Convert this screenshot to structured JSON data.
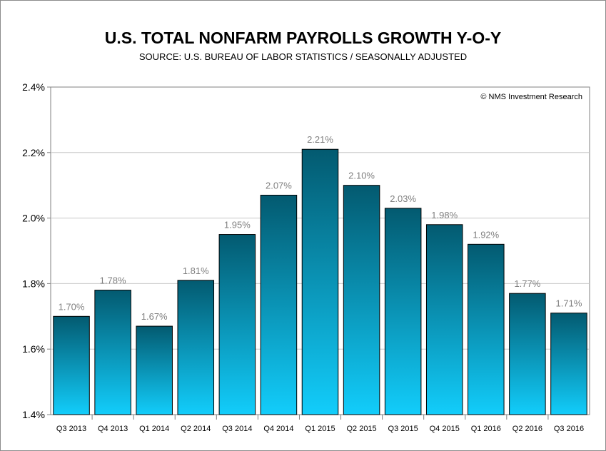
{
  "chart_data": {
    "type": "bar",
    "title": "U.S. TOTAL NONFARM PAYROLLS GROWTH Y-O-Y",
    "subtitle": "SOURCE: U.S. BUREAU OF LABOR STATISTICS / SEASONALLY ADJUSTED",
    "watermark": "© NMS Investment Research",
    "categories": [
      "Q3 2013",
      "Q4 2013",
      "Q1 2014",
      "Q2 2014",
      "Q3 2014",
      "Q4 2014",
      "Q1 2015",
      "Q2 2015",
      "Q3 2015",
      "Q4 2015",
      "Q1 2016",
      "Q2 2016",
      "Q3 2016"
    ],
    "values": [
      1.7,
      1.78,
      1.67,
      1.81,
      1.95,
      2.07,
      2.21,
      2.1,
      2.03,
      1.98,
      1.92,
      1.77,
      1.71
    ],
    "data_labels": [
      "1.70%",
      "1.78%",
      "1.67%",
      "1.81%",
      "1.95%",
      "2.07%",
      "2.21%",
      "2.10%",
      "2.03%",
      "1.98%",
      "1.92%",
      "1.77%",
      "1.71%"
    ],
    "y_ticks": [
      1.4,
      1.6,
      1.8,
      2.0,
      2.2,
      2.4
    ],
    "y_tick_labels": [
      "1.4%",
      "1.6%",
      "1.8%",
      "2.0%",
      "2.2%",
      "2.4%"
    ],
    "ylim": [
      1.4,
      2.4
    ],
    "xlabel": "",
    "ylabel": "",
    "grid": true,
    "colors": {
      "bar_top": "#035a70",
      "bar_bottom": "#12cdfb",
      "bar_outline": "#000000",
      "gridline": "#c8c8c8",
      "data_label": "#808080"
    }
  }
}
